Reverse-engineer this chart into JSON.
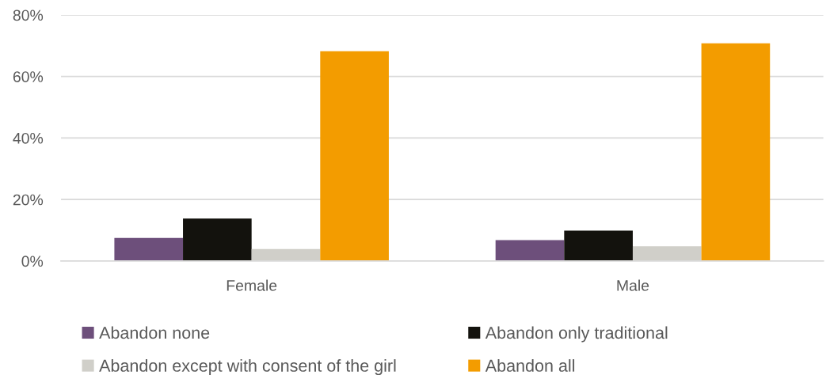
{
  "chart_data": {
    "type": "bar",
    "categories": [
      "Female",
      "Male"
    ],
    "series": [
      {
        "name": "Abandon none",
        "color": "#6d4f7b",
        "values": [
          7.5,
          6.8
        ]
      },
      {
        "name": "Abandon only traditional",
        "color": "#13120d",
        "values": [
          13.8,
          9.9
        ]
      },
      {
        "name": "Abandon except with consent of the girl",
        "color": "#d0cfc9",
        "values": [
          3.9,
          4.8
        ]
      },
      {
        "name": "Abandon all",
        "color": "#f39c00",
        "values": [
          68.2,
          70.8
        ]
      }
    ],
    "ylim": [
      0,
      80
    ],
    "yticks": [
      {
        "value": 0,
        "label": "0%"
      },
      {
        "value": 20,
        "label": "20%"
      },
      {
        "value": 40,
        "label": "40%"
      },
      {
        "value": 60,
        "label": "60%"
      },
      {
        "value": 80,
        "label": "80%"
      }
    ],
    "grid": "y",
    "legend": "bottom"
  }
}
